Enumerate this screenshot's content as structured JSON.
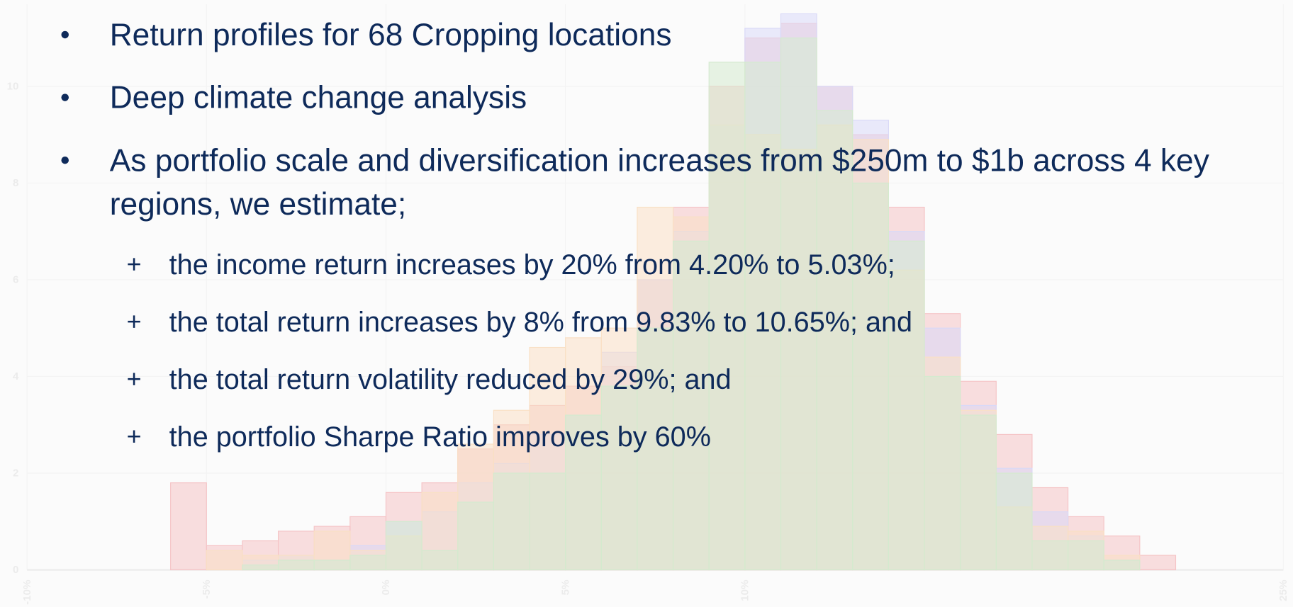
{
  "chart_data": {
    "type": "histogram",
    "bins": [
      -6,
      -5,
      -4,
      -3,
      -2,
      -1,
      0,
      1,
      2,
      3,
      4,
      5,
      6,
      7,
      8,
      9,
      10,
      11,
      12,
      13,
      14,
      15,
      16,
      17,
      18,
      19,
      20,
      21,
      22
    ],
    "series": [
      {
        "color": "#e8474f",
        "values": [
          1.8,
          0.5,
          0.6,
          0.8,
          0.9,
          1.1,
          1.6,
          1.8,
          2.5,
          3.0,
          3.4,
          3.8,
          4.2,
          6.0,
          7.5,
          10.0,
          11.0,
          11.3,
          10.0,
          9.0,
          7.5,
          5.3,
          3.9,
          2.8,
          1.7,
          1.1,
          0.7,
          0.3
        ]
      },
      {
        "color": "#8c8cf0",
        "values": [
          0,
          0,
          0.2,
          0.3,
          0.2,
          0.5,
          1.0,
          1.2,
          1.8,
          2.2,
          2.8,
          3.2,
          4.5,
          6.0,
          7.0,
          9.2,
          11.2,
          11.5,
          10.0,
          9.3,
          7.0,
          5.0,
          3.4,
          2.1,
          1.2,
          0.7,
          0.2,
          0
        ]
      },
      {
        "color": "#f7a34a",
        "values": [
          0,
          0.4,
          0.3,
          0.3,
          0.8,
          0.4,
          0.7,
          1.6,
          2.6,
          3.3,
          4.6,
          4.8,
          5.0,
          7.5,
          7.3,
          9.2,
          9.0,
          8.7,
          9.2,
          8.9,
          6.2,
          4.4,
          3.3,
          1.3,
          0.9,
          0.8,
          0.3,
          0
        ]
      },
      {
        "color": "#7cc46b",
        "values": [
          0,
          0,
          0.1,
          0.2,
          0.2,
          0.3,
          1.0,
          0.4,
          1.4,
          2.0,
          2.0,
          3.2,
          3.8,
          5.0,
          6.8,
          10.5,
          10.5,
          11.0,
          9.5,
          8.0,
          6.8,
          4.0,
          3.2,
          2.0,
          0.6,
          0.6,
          0.2,
          0
        ]
      }
    ],
    "xlim": [
      -10,
      25
    ],
    "xticks": [
      {
        "value": -10,
        "label": "-10%"
      },
      {
        "value": -5,
        "label": "-5%"
      },
      {
        "value": 0,
        "label": "0%"
      },
      {
        "value": 5,
        "label": "5%"
      },
      {
        "value": 10,
        "label": "10%"
      },
      {
        "value": 25,
        "label": "25%"
      }
    ],
    "ylim": [
      0,
      11.7
    ],
    "yticks": [
      0,
      2,
      4,
      6,
      8,
      10
    ]
  },
  "bullets": [
    {
      "lines": [
        "Return profiles for 68 Cropping locations"
      ]
    },
    {
      "lines": [
        "Deep climate change analysis"
      ]
    },
    {
      "lines": [
        "As portfolio scale and diversification increases from $250m to $1b across 4 key",
        "regions, we estimate;"
      ]
    }
  ],
  "sub_bullets": [
    "the income return increases by 20% from 4.20% to 5.03%;",
    "the total return increases by 8% from 9.83% to 10.65%; and",
    "the total return volatility reduced by 29%; and",
    "the portfolio Sharpe Ratio improves by 60%"
  ]
}
